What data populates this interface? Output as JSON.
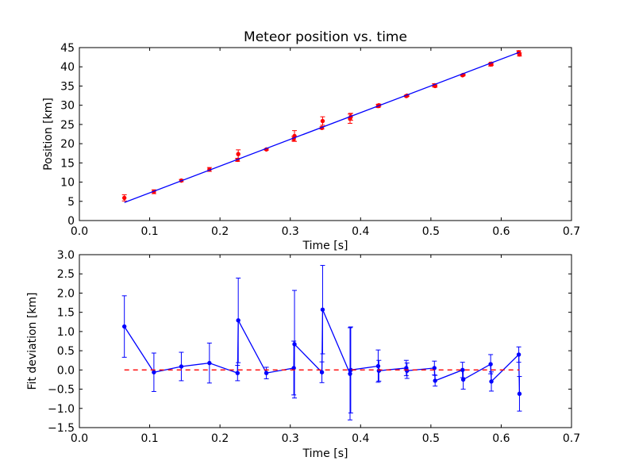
{
  "chart_data": [
    {
      "type": "scatter",
      "title": "Meteor position vs. time",
      "xlabel": "Time [s]",
      "ylabel": "Position [km]",
      "xlim": [
        0.0,
        0.7
      ],
      "ylim": [
        0,
        45
      ],
      "xticks": [
        "0.0",
        "0.1",
        "0.2",
        "0.3",
        "0.4",
        "0.5",
        "0.6",
        "0.7"
      ],
      "yticks": [
        "0",
        "5",
        "10",
        "15",
        "20",
        "25",
        "30",
        "35",
        "40",
        "45"
      ],
      "grid": false,
      "series": [
        {
          "kind": "errorbar",
          "color": "#ff0000",
          "x": [
            0.064,
            0.106,
            0.145,
            0.185,
            0.225,
            0.226,
            0.266,
            0.305,
            0.306,
            0.345,
            0.346,
            0.385,
            0.386,
            0.425,
            0.426,
            0.465,
            0.466,
            0.505,
            0.506,
            0.545,
            0.546,
            0.585,
            0.586,
            0.625,
            0.626
          ],
          "y": [
            5.9,
            7.5,
            10.4,
            13.3,
            15.8,
            17.3,
            18.5,
            21.3,
            22.0,
            24.1,
            25.9,
            26.5,
            27.0,
            29.8,
            30.0,
            32.4,
            32.5,
            35.2,
            35.0,
            37.8,
            37.9,
            40.6,
            40.8,
            43.8,
            43.2
          ],
          "yerr": [
            0.8,
            0.5,
            0.3,
            0.5,
            0.4,
            1.1,
            0.2,
            0.6,
            1.4,
            0.3,
            1.1,
            1.2,
            0.9,
            0.4,
            0.3,
            0.2,
            0.2,
            0.4,
            0.3,
            0.2,
            0.2,
            0.4,
            0.4,
            0.4,
            0.4
          ]
        },
        {
          "kind": "fit-line",
          "color": "#0000ff",
          "x": [
            0.064,
            0.626
          ],
          "y": [
            4.7,
            43.8
          ]
        }
      ]
    },
    {
      "type": "line",
      "title": "",
      "xlabel": "Time [s]",
      "ylabel": "Fit deviation [km]",
      "xlim": [
        0.0,
        0.7
      ],
      "ylim": [
        -1.5,
        3.0
      ],
      "xticks": [
        "0.0",
        "0.1",
        "0.2",
        "0.3",
        "0.4",
        "0.5",
        "0.6",
        "0.7"
      ],
      "yticks": [
        "−1.5",
        "−1.0",
        "−0.5",
        "0.0",
        "0.5",
        "1.0",
        "1.5",
        "2.0",
        "2.5",
        "3.0"
      ],
      "grid": false,
      "series": [
        {
          "kind": "errorbar-line",
          "color": "#0000ff",
          "x": [
            0.064,
            0.106,
            0.145,
            0.185,
            0.225,
            0.226,
            0.266,
            0.305,
            0.306,
            0.345,
            0.346,
            0.385,
            0.386,
            0.425,
            0.426,
            0.465,
            0.466,
            0.505,
            0.506,
            0.545,
            0.546,
            0.585,
            0.586,
            0.625,
            0.626
          ],
          "y": [
            1.13,
            -0.06,
            0.09,
            0.18,
            -0.08,
            1.29,
            -0.08,
            0.05,
            0.67,
            -0.06,
            1.57,
            -0.1,
            0.0,
            0.1,
            -0.02,
            0.05,
            -0.02,
            0.05,
            -0.28,
            0.0,
            -0.25,
            0.15,
            -0.3,
            0.4,
            -0.62
          ],
          "yerr": [
            0.8,
            0.5,
            0.37,
            0.52,
            0.2,
            1.1,
            0.15,
            0.7,
            1.4,
            0.27,
            1.15,
            1.2,
            1.12,
            0.42,
            0.27,
            0.2,
            0.2,
            0.18,
            0.14,
            0.2,
            0.25,
            0.25,
            0.25,
            0.2,
            0.45
          ]
        },
        {
          "kind": "reference-line",
          "color": "#ff0000",
          "dashed": true,
          "x": [
            0.064,
            0.626
          ],
          "y": [
            0.0,
            0.0
          ]
        }
      ]
    }
  ]
}
